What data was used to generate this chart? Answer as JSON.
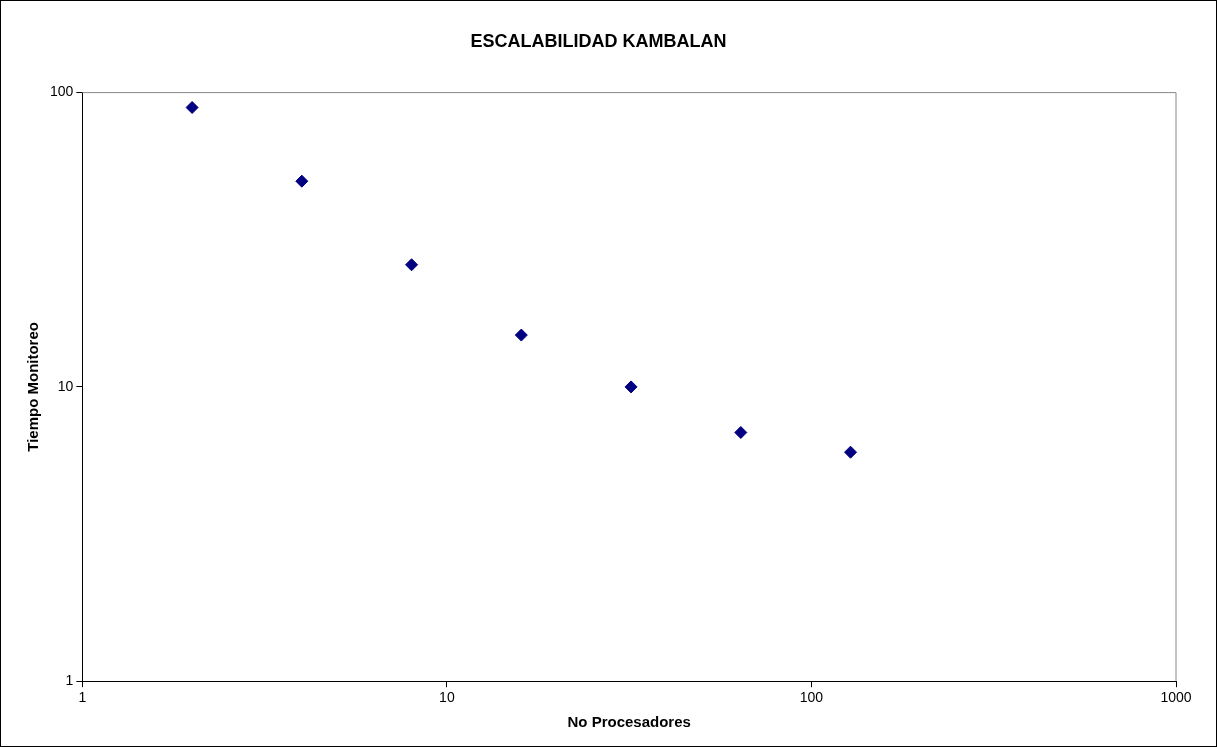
{
  "chart_data": {
    "type": "scatter",
    "title": "ESCALABILIDAD KAMBALAN",
    "xlabel": "No Procesadores",
    "ylabel": "Tiempo Monitoreo",
    "x": [
      2,
      4,
      8,
      16,
      32,
      64,
      128
    ],
    "series": [
      {
        "color": "#000080",
        "values": [
          89,
          50,
          26,
          15,
          10,
          7,
          6
        ]
      }
    ],
    "log": "xy",
    "xlim": [
      1,
      1000
    ],
    "xticks": [
      1,
      10,
      100,
      1000
    ],
    "ylim": [
      1,
      100
    ],
    "yticks": [
      1,
      10,
      100
    ],
    "grid": false,
    "legend": false,
    "marker": "diamond"
  }
}
